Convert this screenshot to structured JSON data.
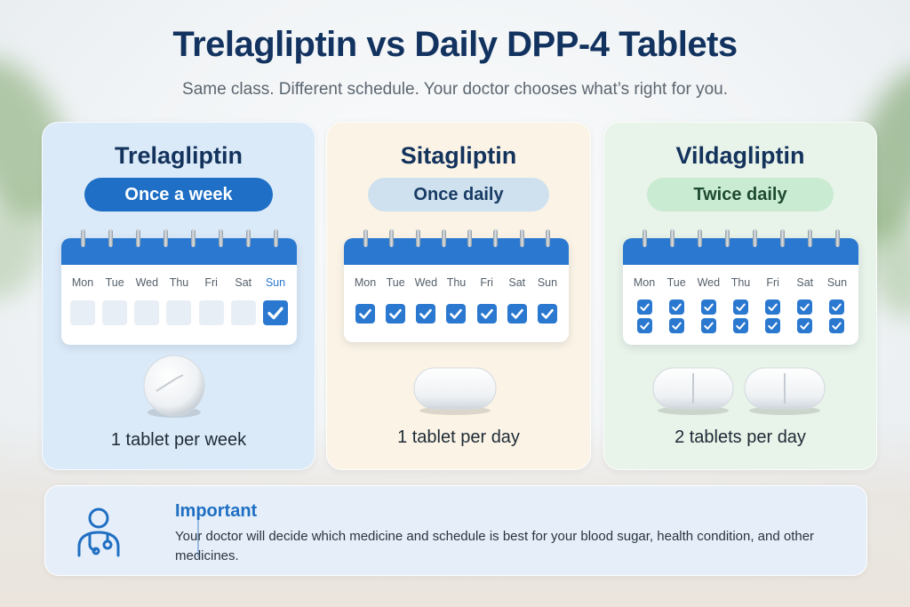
{
  "title": "Trelagliptin vs Daily DPP-4 Tablets",
  "subtitle": "Same class. Different schedule. Your doctor chooses what’s right for you.",
  "day_labels": [
    "Mon",
    "Tue",
    "Wed",
    "Thu",
    "Fri",
    "Sat",
    "Sun"
  ],
  "colors": {
    "accent": "#2a78cf",
    "title": "#12325f",
    "card1": "#dbeaf8",
    "card2": "#fbf4e6",
    "card3": "#e8f3e9"
  },
  "cards": [
    {
      "name": "Trelagliptin",
      "frequency": "Once a week",
      "dose_text": "1 tablet per week",
      "checked_days": [
        "Sun"
      ],
      "rows": 1
    },
    {
      "name": "Sitagliptin",
      "frequency": "Once daily",
      "dose_text": "1 tablet per day",
      "checked_days": [
        "Mon",
        "Tue",
        "Wed",
        "Thu",
        "Fri",
        "Sat",
        "Sun"
      ],
      "rows": 1
    },
    {
      "name": "Vildagliptin",
      "frequency": "Twice daily",
      "dose_text": "2 tablets per day",
      "checked_days": [
        "Mon",
        "Tue",
        "Wed",
        "Thu",
        "Fri",
        "Sat",
        "Sun"
      ],
      "rows": 2
    }
  ],
  "note": {
    "icon": "doctor-icon",
    "title": "Important",
    "text": "Your doctor will decide which medicine and schedule is best for your blood sugar, health condition, and other medicines."
  }
}
